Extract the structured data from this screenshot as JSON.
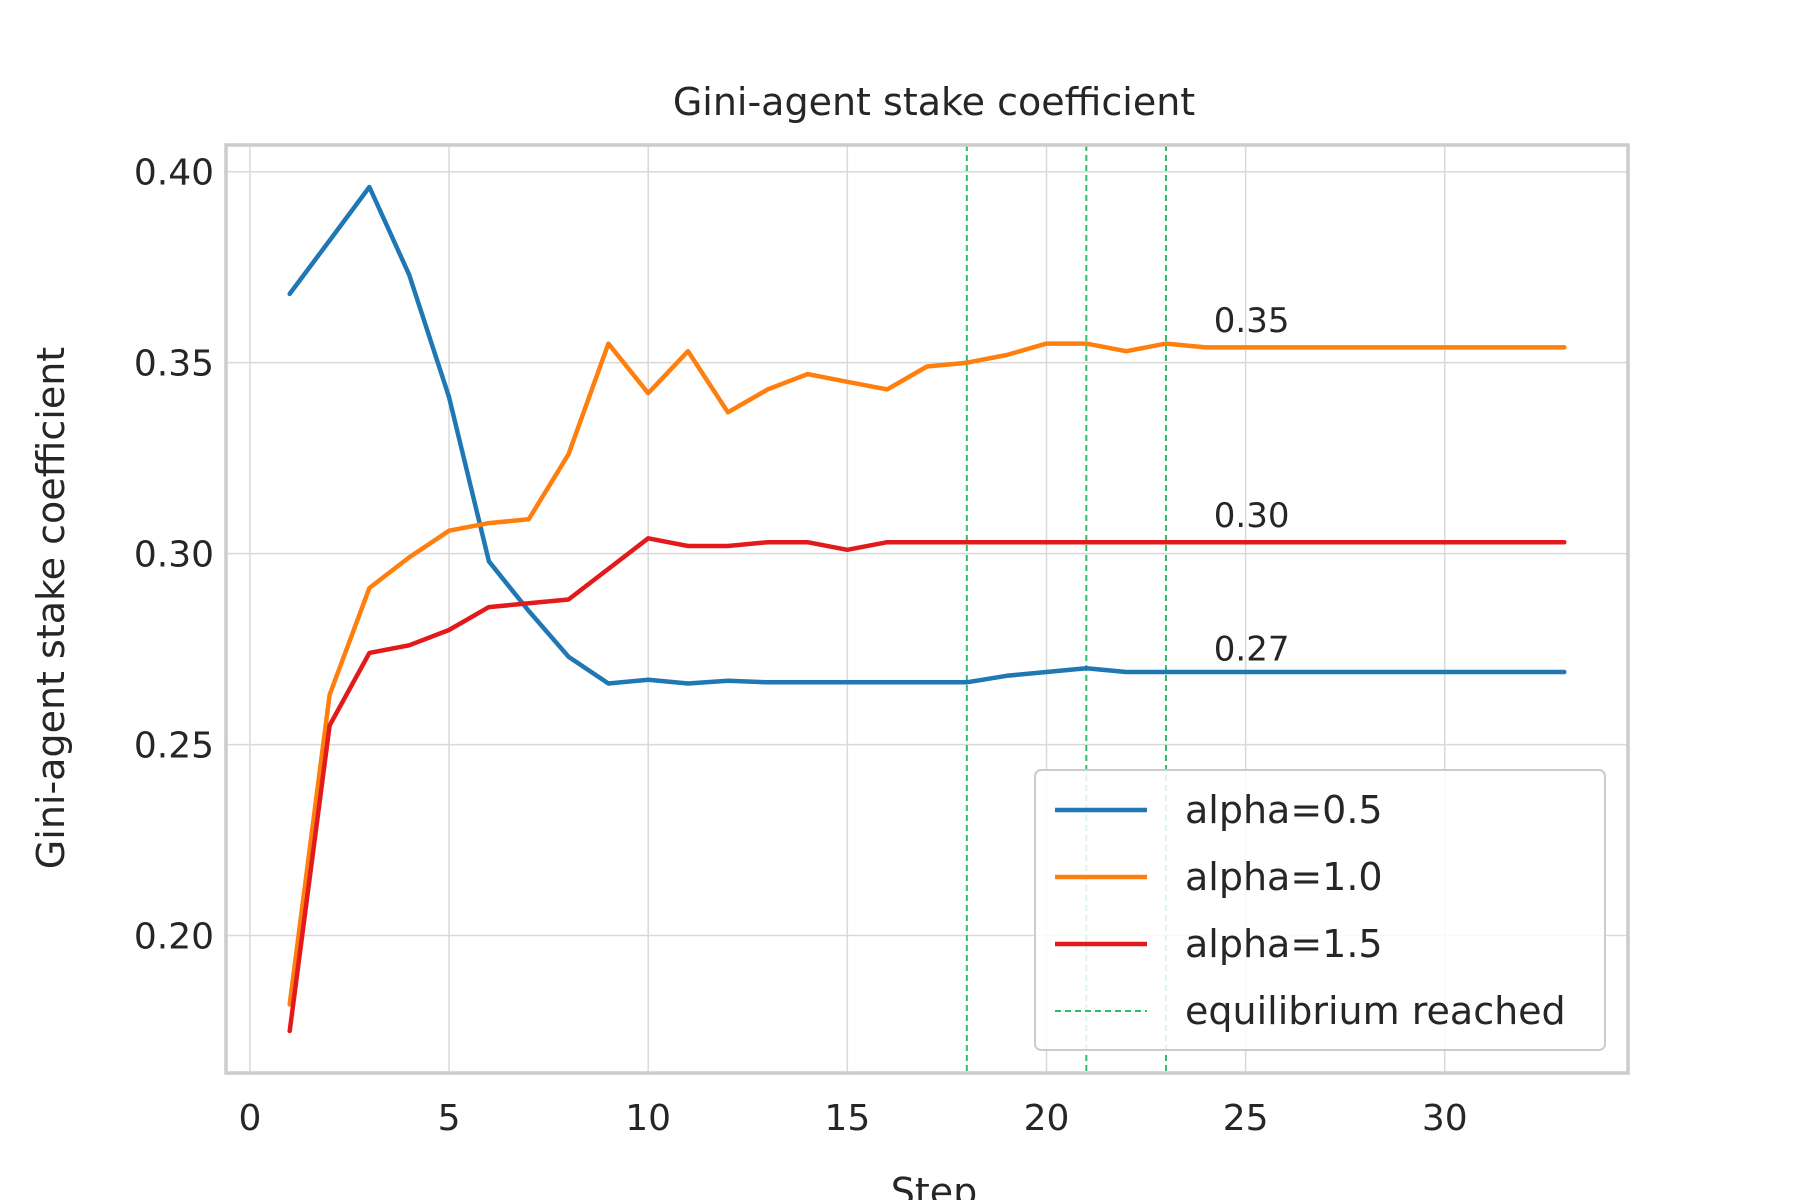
{
  "chart_data": {
    "type": "line",
    "title": "Gini-agent stake coefficient",
    "xlabel": "Step",
    "ylabel": "Gini-agent stake coefficient",
    "xlim": [
      -0.6,
      34.6
    ],
    "ylim": [
      0.164,
      0.407
    ],
    "xticks": [
      0,
      5,
      10,
      15,
      20,
      25,
      30
    ],
    "yticks": [
      0.2,
      0.25,
      0.3,
      0.35,
      0.4
    ],
    "xtick_labels": [
      "0",
      "5",
      "10",
      "15",
      "20",
      "25",
      "30"
    ],
    "ytick_labels": [
      "0.20",
      "0.25",
      "0.30",
      "0.35",
      "0.40"
    ],
    "grid": true,
    "legend_position": "lower-right",
    "x": [
      1,
      2,
      3,
      4,
      5,
      6,
      7,
      8,
      9,
      10,
      11,
      12,
      13,
      14,
      15,
      16,
      17,
      18,
      19,
      20,
      21,
      22,
      23,
      24,
      25,
      26,
      27,
      28,
      29,
      30,
      31,
      32,
      33
    ],
    "series": [
      {
        "name": "alpha=0.5",
        "color": "#1f77b4",
        "values": [
          0.368,
          0.382,
          0.396,
          0.373,
          0.341,
          0.298,
          0.285,
          0.273,
          0.266,
          0.267,
          0.266,
          0.2667,
          0.2663,
          0.2663,
          0.2663,
          0.2663,
          0.2663,
          0.2663,
          0.268,
          0.269,
          0.27,
          0.269,
          0.269,
          0.269,
          0.269,
          0.269,
          0.269,
          0.269,
          0.269,
          0.269,
          0.269,
          0.269,
          0.269
        ]
      },
      {
        "name": "alpha=1.0",
        "color": "#ff7f0e",
        "values": [
          0.182,
          0.263,
          0.291,
          0.299,
          0.306,
          0.308,
          0.309,
          0.326,
          0.355,
          0.342,
          0.353,
          0.337,
          0.343,
          0.347,
          0.345,
          0.343,
          0.349,
          0.35,
          0.352,
          0.355,
          0.355,
          0.353,
          0.355,
          0.354,
          0.354,
          0.354,
          0.354,
          0.354,
          0.354,
          0.354,
          0.354,
          0.354,
          0.354
        ]
      },
      {
        "name": "alpha=1.5",
        "color": "#e31a1c",
        "values": [
          0.175,
          0.255,
          0.274,
          0.276,
          0.28,
          0.286,
          0.287,
          0.288,
          0.296,
          0.304,
          0.302,
          0.302,
          0.303,
          0.303,
          0.301,
          0.303,
          0.303,
          0.303,
          0.303,
          0.303,
          0.303,
          0.303,
          0.303,
          0.303,
          0.303,
          0.303,
          0.303,
          0.303,
          0.303,
          0.303,
          0.303,
          0.303,
          0.303
        ]
      }
    ],
    "equilibrium": {
      "name": "equilibrium reached",
      "color": "#2ebd6b",
      "x": [
        18,
        21,
        23
      ]
    },
    "annotations": [
      {
        "text": "0.35",
        "x": 24,
        "y": 0.358
      },
      {
        "text": "0.30",
        "x": 24,
        "y": 0.307
      },
      {
        "text": "0.27",
        "x": 24,
        "y": 0.272
      }
    ]
  }
}
